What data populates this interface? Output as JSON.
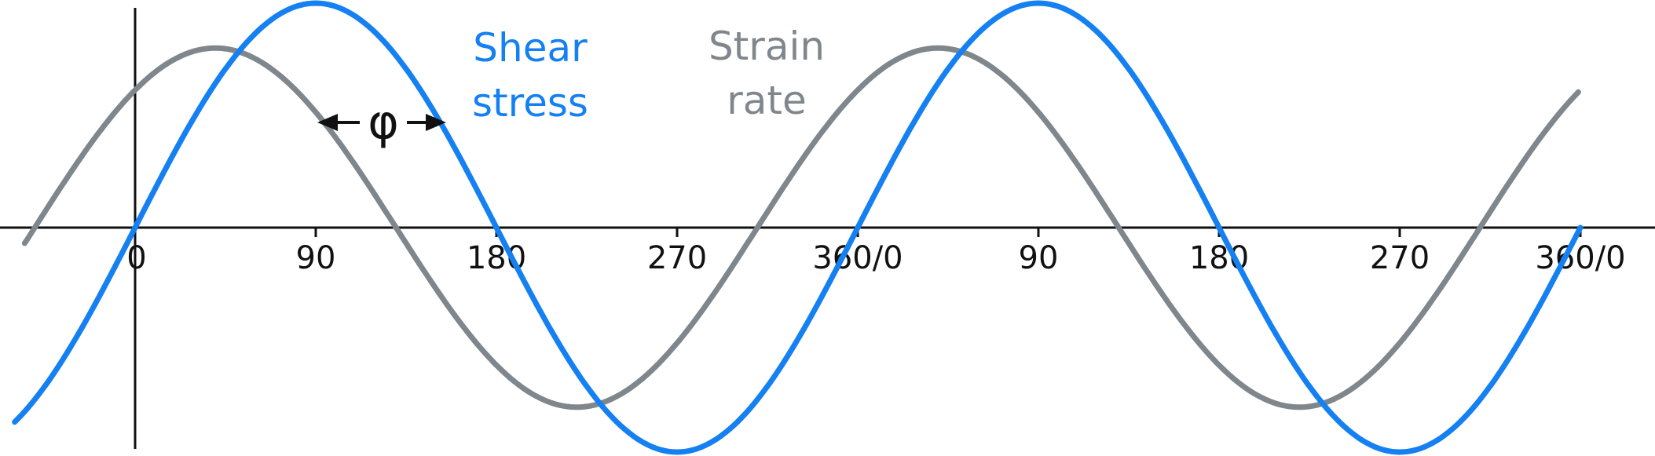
{
  "colors": {
    "shear_stress": "#1580f2",
    "strain_rate": "#7f878d",
    "axis": "#111111"
  },
  "labels": {
    "shear_stress": [
      "Shear",
      "stress"
    ],
    "strain_rate": [
      "Strain",
      "rate"
    ],
    "phase_symbol": "φ"
  },
  "chart_data": {
    "type": "line",
    "x_unit": "degrees (phase angle)",
    "x_ticks": [
      "0",
      "90",
      "180",
      "270",
      "360/0",
      "90",
      "180",
      "270",
      "360/0"
    ],
    "xlim": [
      -60,
      720
    ],
    "ylim": [
      -1,
      1
    ],
    "grid": false,
    "series": [
      {
        "name": "Shear stress",
        "function": "sin(x)",
        "phase_offset_deg": 0,
        "amplitude": 1.0,
        "x_range": [
          -60,
          720
        ]
      },
      {
        "name": "Strain rate",
        "function": "sin(x + phase)",
        "phase_offset_deg": 50,
        "amplitude": 0.8,
        "x_range": [
          -55,
          720
        ]
      }
    ],
    "annotation": {
      "symbol": "φ",
      "type": "phase-difference-arrows",
      "between": [
        "Strain rate",
        "Shear stress"
      ]
    }
  }
}
